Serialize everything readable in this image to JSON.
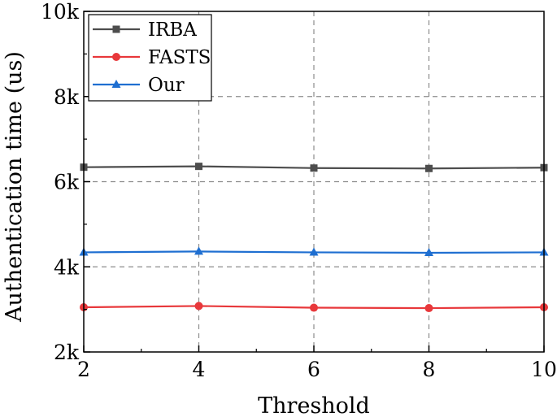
{
  "chart_data": {
    "type": "line",
    "title": "",
    "xlabel": "Threshold",
    "ylabel": "Authentication time (us)",
    "x": [
      2,
      4,
      6,
      8,
      10
    ],
    "xlim": [
      2,
      10
    ],
    "ylim": [
      2000,
      10000
    ],
    "x_ticks": [
      {
        "value": 2,
        "label": "2"
      },
      {
        "value": 4,
        "label": "4"
      },
      {
        "value": 6,
        "label": "6"
      },
      {
        "value": 8,
        "label": "8"
      },
      {
        "value": 10,
        "label": "10"
      }
    ],
    "y_ticks": [
      {
        "value": 2000,
        "label": "2k"
      },
      {
        "value": 4000,
        "label": "4k"
      },
      {
        "value": 6000,
        "label": "6k"
      },
      {
        "value": 8000,
        "label": "8k"
      },
      {
        "value": 10000,
        "label": "10k"
      }
    ],
    "grid": true,
    "grid_style": "dashed",
    "legend_position": "top-left",
    "series": [
      {
        "name": "IRBA",
        "color": "#4d4d4d",
        "marker": "square",
        "values": [
          6340,
          6360,
          6320,
          6310,
          6330
        ]
      },
      {
        "name": "FASTS",
        "color": "#e8383b",
        "marker": "circle",
        "values": [
          3050,
          3080,
          3040,
          3030,
          3050
        ]
      },
      {
        "name": "Our",
        "color": "#1f6fd1",
        "marker": "triangle",
        "values": [
          4340,
          4360,
          4340,
          4330,
          4340
        ]
      }
    ]
  }
}
